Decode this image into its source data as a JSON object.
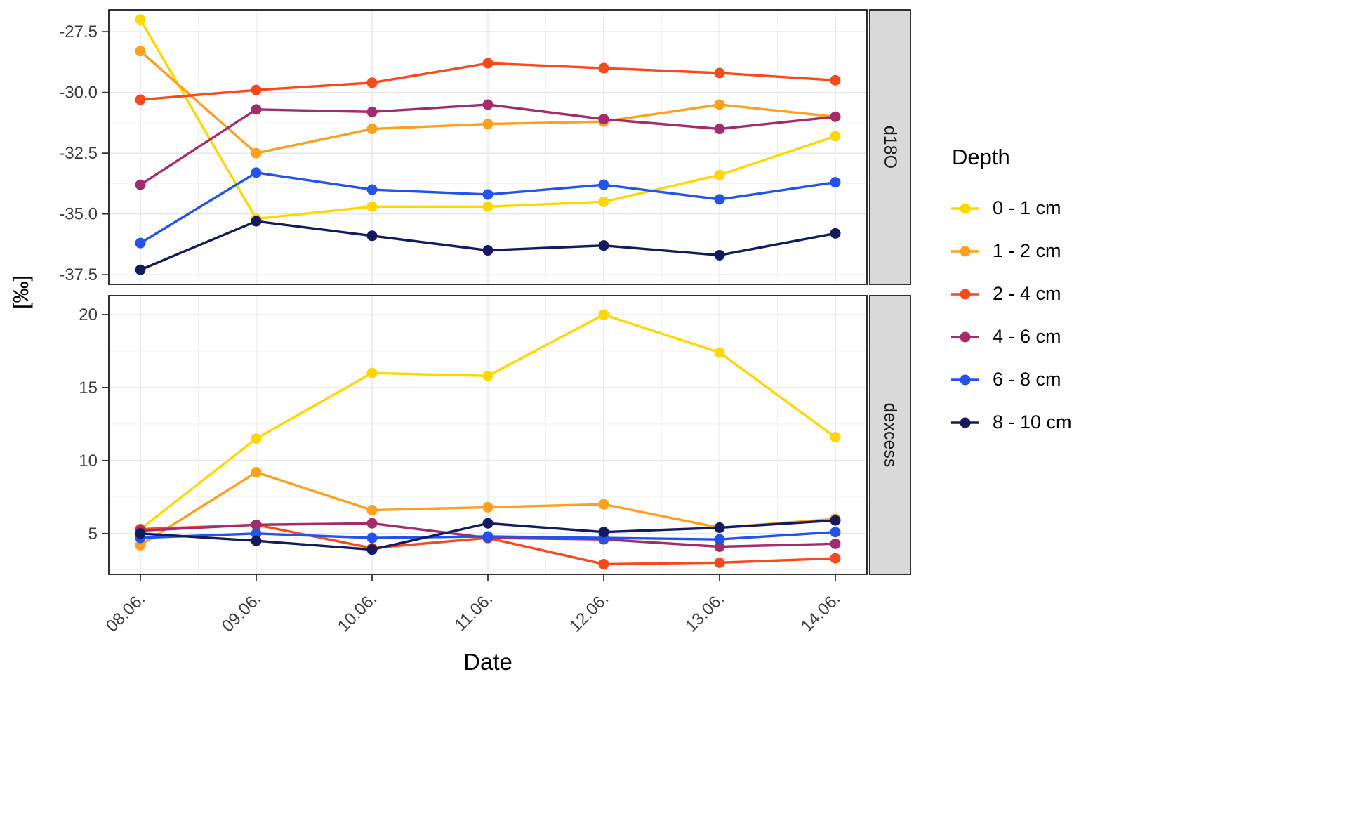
{
  "chart_data": {
    "type": "line",
    "title": "",
    "xlabel": "Date",
    "ylabel": "[‰]",
    "legend_title": "Depth",
    "legend_position": "right",
    "grid": true,
    "x": [
      "08.06.",
      "09.06.",
      "10.06.",
      "11.06.",
      "12.06.",
      "13.06.",
      "14.06."
    ],
    "series_names": [
      "0 - 1 cm",
      "1 - 2 cm",
      "2 - 4 cm",
      "4 - 6 cm",
      "6 - 8 cm",
      "8 - 10 cm"
    ],
    "series_colors": [
      "#FFD700",
      "#FBA01F",
      "#F8491C",
      "#A32C6B",
      "#2353E8",
      "#141A5E"
    ],
    "facets": [
      {
        "label": "d18O",
        "ylim": [
          -37.9,
          -26.6
        ],
        "yticks": [
          -37.5,
          -35.0,
          -32.5,
          -30.0,
          -27.5
        ],
        "ytick_labels": [
          "-37.5",
          "-35.0",
          "-32.5",
          "-30.0",
          "-27.5"
        ],
        "series": [
          {
            "name": "0 - 1 cm",
            "values": [
              -27.0,
              -35.2,
              -34.7,
              -34.7,
              -34.5,
              -33.4,
              -31.8
            ]
          },
          {
            "name": "1 - 2 cm",
            "values": [
              -28.3,
              -32.5,
              -31.5,
              -31.3,
              -31.2,
              -30.5,
              -31.0
            ]
          },
          {
            "name": "2 - 4 cm",
            "values": [
              -30.3,
              -29.9,
              -29.6,
              -28.8,
              -29.0,
              -29.2,
              -29.5
            ]
          },
          {
            "name": "4 - 6 cm",
            "values": [
              -33.8,
              -30.7,
              -30.8,
              -30.5,
              -31.1,
              -31.5,
              -31.0
            ]
          },
          {
            "name": "6 - 8 cm",
            "values": [
              -36.2,
              -33.3,
              -34.0,
              -34.2,
              -33.8,
              -34.4,
              -33.7
            ]
          },
          {
            "name": "8 - 10 cm",
            "values": [
              -37.3,
              -35.3,
              -35.9,
              -36.5,
              -36.3,
              -36.7,
              -35.8
            ]
          }
        ]
      },
      {
        "label": "dexcess",
        "ylim": [
          2.2,
          21.3
        ],
        "yticks": [
          5,
          10,
          15,
          20
        ],
        "ytick_labels": [
          "5",
          "10",
          "15",
          "20"
        ],
        "series": [
          {
            "name": "0 - 1 cm",
            "values": [
              5.3,
              11.5,
              16.0,
              15.8,
              20.0,
              17.4,
              11.6
            ]
          },
          {
            "name": "1 - 2 cm",
            "values": [
              4.2,
              9.2,
              6.6,
              6.8,
              7.0,
              5.4,
              6.0
            ]
          },
          {
            "name": "2 - 4 cm",
            "values": [
              5.3,
              5.6,
              4.0,
              4.7,
              2.9,
              3.0,
              3.3
            ]
          },
          {
            "name": "4 - 6 cm",
            "values": [
              5.2,
              5.6,
              5.7,
              4.7,
              4.6,
              4.1,
              4.3
            ]
          },
          {
            "name": "6 - 8 cm",
            "values": [
              4.7,
              5.0,
              4.7,
              4.8,
              4.7,
              4.6,
              5.1
            ]
          },
          {
            "name": "8 - 10 cm",
            "values": [
              5.0,
              4.5,
              3.9,
              5.7,
              5.1,
              5.4,
              5.9
            ]
          }
        ]
      }
    ]
  }
}
